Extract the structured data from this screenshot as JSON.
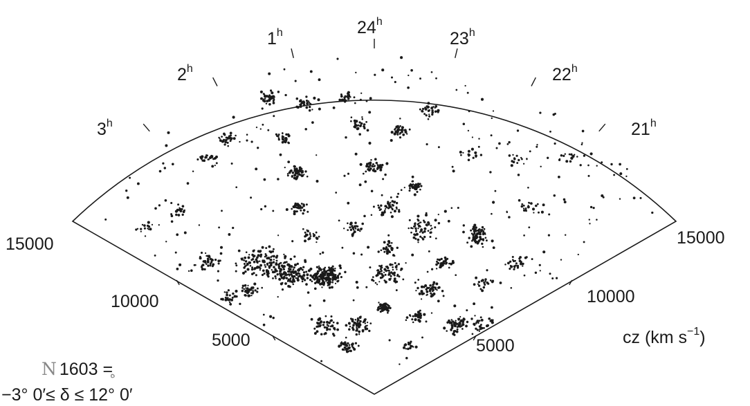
{
  "hour_labels": [
    {
      "text": "3",
      "sup": "h",
      "ra_hours": 3
    },
    {
      "text": "2",
      "sup": "h",
      "ra_hours": 2
    },
    {
      "text": "1",
      "sup": "h",
      "ra_hours": 1
    },
    {
      "text": "24",
      "sup": "h",
      "ra_hours": 24
    },
    {
      "text": "23",
      "sup": "h",
      "ra_hours": 23
    },
    {
      "text": "22",
      "sup": "h",
      "ra_hours": 22
    },
    {
      "text": "21",
      "sup": "h",
      "ra_hours": 21
    }
  ],
  "distance_labels": {
    "left": [
      "15000",
      "10000",
      "5000"
    ],
    "right": [
      "15000",
      "10000",
      "5000"
    ]
  },
  "axis_unit": {
    "text": "cz  (km s",
    "sup": "−1",
    "close": ")"
  },
  "count_label": "N",
  "count_sub": "ه",
  "count_value": "= 1603",
  "declination_label": "−3° 0′≤ δ ≤ 12° 0′",
  "colors": {
    "ink": "#1a1a1a",
    "background": "#ffffff"
  }
}
